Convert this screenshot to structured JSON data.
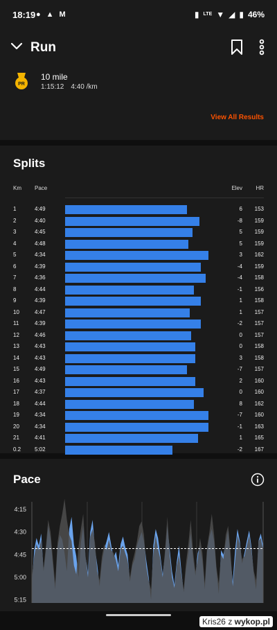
{
  "status_bar": {
    "time": "18:19",
    "network": "LTE",
    "battery": "46%"
  },
  "app_bar": {
    "title": "Run"
  },
  "pr": {
    "badge": "PR",
    "name": "10 mile",
    "time": "1:15:12",
    "pace": "4:40 /km",
    "view_all": "View All Results"
  },
  "splits": {
    "title": "Splits",
    "headers": {
      "km": "Km",
      "pace": "Pace",
      "elev": "Elev",
      "hr": "HR"
    },
    "rows": [
      {
        "km": "1",
        "pace": "4:49",
        "elev": "6",
        "hr": "153"
      },
      {
        "km": "2",
        "pace": "4:40",
        "elev": "-8",
        "hr": "159"
      },
      {
        "km": "3",
        "pace": "4:45",
        "elev": "5",
        "hr": "159"
      },
      {
        "km": "4",
        "pace": "4:48",
        "elev": "5",
        "hr": "159"
      },
      {
        "km": "5",
        "pace": "4:34",
        "elev": "3",
        "hr": "162"
      },
      {
        "km": "6",
        "pace": "4:39",
        "elev": "-4",
        "hr": "159"
      },
      {
        "km": "7",
        "pace": "4:36",
        "elev": "-4",
        "hr": "158"
      },
      {
        "km": "8",
        "pace": "4:44",
        "elev": "-1",
        "hr": "156"
      },
      {
        "km": "9",
        "pace": "4:39",
        "elev": "1",
        "hr": "158"
      },
      {
        "km": "10",
        "pace": "4:47",
        "elev": "1",
        "hr": "157"
      },
      {
        "km": "11",
        "pace": "4:39",
        "elev": "-2",
        "hr": "157"
      },
      {
        "km": "12",
        "pace": "4:46",
        "elev": "0",
        "hr": "157"
      },
      {
        "km": "13",
        "pace": "4:43",
        "elev": "0",
        "hr": "158"
      },
      {
        "km": "14",
        "pace": "4:43",
        "elev": "3",
        "hr": "158"
      },
      {
        "km": "15",
        "pace": "4:49",
        "elev": "-7",
        "hr": "157"
      },
      {
        "km": "16",
        "pace": "4:43",
        "elev": "2",
        "hr": "160"
      },
      {
        "km": "17",
        "pace": "4:37",
        "elev": "0",
        "hr": "160"
      },
      {
        "km": "18",
        "pace": "4:44",
        "elev": "8",
        "hr": "162"
      },
      {
        "km": "19",
        "pace": "4:34",
        "elev": "-7",
        "hr": "160"
      },
      {
        "km": "20",
        "pace": "4:34",
        "elev": "-1",
        "hr": "163"
      },
      {
        "km": "21",
        "pace": "4:41",
        "elev": "1",
        "hr": "165"
      },
      {
        "km": "0.2",
        "pace": "5:02",
        "elev": "-2",
        "hr": "167"
      }
    ],
    "bar_color": "#3580e8"
  },
  "pace_section": {
    "title": "Pace"
  },
  "chart_data": {
    "type": "area",
    "y_ticks": [
      "4:15",
      "4:30",
      "4:45",
      "5:00",
      "5:15"
    ],
    "y_tick_seconds": [
      255,
      270,
      285,
      300,
      315
    ],
    "ylim_seconds": [
      250,
      317
    ],
    "average_line_seconds": 281,
    "series": [
      {
        "color": "#6aa3ec",
        "values_seconds": [
          304,
          282,
          274,
          279,
          271,
          296,
          283,
          266,
          274,
          292,
          308,
          280,
          272,
          275,
          284,
          296,
          268,
          260,
          278,
          286,
          300,
          277,
          266,
          287,
          297,
          270,
          262,
          281,
          292,
          306,
          290,
          281,
          276,
          270,
          279,
          287,
          283,
          292,
          278,
          273,
          280,
          285,
          303,
          292,
          288,
          279,
          274,
          270,
          276,
          289,
          300,
          315,
          279,
          268,
          274,
          286,
          298,
          285,
          266,
          282,
          296,
          305,
          290,
          279,
          296,
          310,
          294,
          284,
          271,
          287,
          299,
          284,
          279,
          289,
          308,
          283,
          273,
          268,
          276,
          295,
          311,
          282,
          285,
          277,
          269,
          287,
          303,
          282,
          268,
          276,
          291,
          284,
          276,
          269,
          280,
          298,
          308,
          276,
          271,
          279
        ]
      },
      {
        "color": "#4d4d4d",
        "values_seconds": [
          300,
          286,
          278,
          282,
          275,
          294,
          280,
          262,
          270,
          288,
          304,
          277,
          266,
          258,
          248,
          262,
          272,
          276,
          292,
          298,
          279,
          268,
          258,
          286,
          300,
          273,
          268,
          277,
          296,
          302,
          286,
          278,
          282,
          275,
          282,
          284,
          289,
          296,
          281,
          279,
          284,
          289,
          300,
          290,
          284,
          276,
          266,
          263,
          272,
          293,
          302,
          308,
          284,
          272,
          281,
          288,
          300,
          282,
          260,
          285,
          300,
          307,
          292,
          285,
          298,
          308,
          290,
          278,
          262,
          283,
          296,
          288,
          274,
          284,
          304,
          280,
          270,
          258,
          272,
          293,
          304,
          285,
          288,
          272,
          266,
          282,
          306,
          289,
          272,
          278,
          288,
          286,
          279,
          272,
          282,
          296,
          302,
          276,
          274,
          282
        ]
      }
    ]
  },
  "watermark": {
    "user": "Kris26",
    "sep": "z",
    "brand": "wykop.pl"
  }
}
